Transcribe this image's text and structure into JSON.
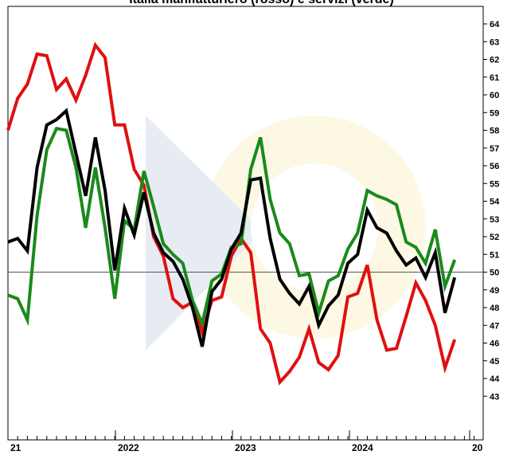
{
  "chart_data": {
    "type": "line",
    "title": "Italia  manifatturiero (rosso) e servizi (verde)",
    "ylim": [
      42.5,
      65
    ],
    "y_ticks": [
      43,
      44,
      45,
      46,
      47,
      48,
      49,
      50,
      51,
      52,
      53,
      54,
      55,
      56,
      57,
      58,
      59,
      60,
      61,
      62,
      63,
      64
    ],
    "x_tick_labels": [
      "21",
      "2022",
      "2023",
      "2024",
      "20"
    ],
    "reference_line": 50,
    "grid": false,
    "legend": "none",
    "series": [
      {
        "color": "#e01010",
        "values": [
          58.0,
          59.8,
          60.6,
          62.3,
          62.2,
          60.3,
          60.9,
          59.7,
          61.1,
          62.8,
          62.1,
          58.3,
          58.3,
          55.8,
          54.9,
          52.0,
          50.9,
          48.5,
          48.0,
          48.3,
          46.6,
          48.4,
          48.6,
          50.9,
          51.9,
          51.1,
          46.8,
          46.0,
          43.8,
          44.4,
          45.2,
          46.8,
          44.9,
          44.5,
          45.3,
          48.6,
          48.8,
          50.4,
          47.3,
          45.6,
          45.7,
          47.5,
          49.4,
          48.4,
          47.0,
          44.6,
          46.2
        ]
      },
      {
        "color": "#1a8a1a",
        "values": [
          48.7,
          48.5,
          47.3,
          53.2,
          56.9,
          58.1,
          58.0,
          55.9,
          52.5,
          55.9,
          52.5,
          48.5,
          52.9,
          52.4,
          55.7,
          53.7,
          51.6,
          51.0,
          50.5,
          48.4,
          47.1,
          49.5,
          49.9,
          51.4,
          51.6,
          55.8,
          57.6,
          54.1,
          52.2,
          51.6,
          49.8,
          49.9,
          47.7,
          49.5,
          49.8,
          51.3,
          52.2,
          54.6,
          54.3,
          54.1,
          53.8,
          51.7,
          51.4,
          50.5,
          52.4,
          49.2,
          50.7
        ]
      },
      {
        "color": "#000000",
        "values": [
          51.7,
          51.9,
          51.2,
          55.9,
          58.3,
          58.6,
          59.1,
          56.7,
          54.3,
          57.6,
          54.6,
          50.1,
          53.6,
          52.1,
          54.5,
          52.2,
          51.1,
          50.6,
          49.6,
          48.0,
          45.8,
          48.9,
          49.6,
          51.3,
          52.2,
          55.2,
          55.3,
          51.9,
          49.6,
          48.8,
          48.2,
          49.2,
          47.0,
          48.1,
          48.7,
          50.5,
          51.0,
          53.5,
          52.5,
          52.2,
          51.2,
          50.4,
          50.8,
          49.7,
          51.1,
          47.7,
          49.7
        ]
      }
    ]
  }
}
